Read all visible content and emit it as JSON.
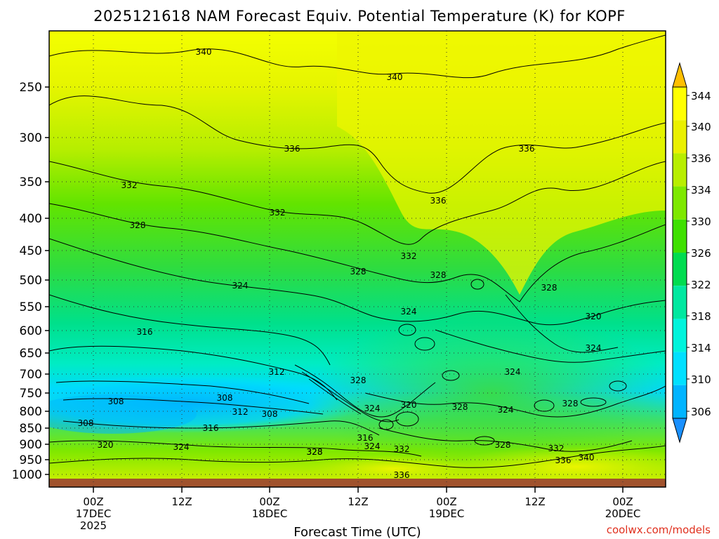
{
  "chart_data": {
    "type": "heatmap",
    "title": "2025121618 NAM Forecast Equiv. Potential Temperature (K) for KOPF",
    "xlabel": "Forecast Time (UTC)",
    "ylabel": "",
    "y_ticks": [
      "250",
      "300",
      "350",
      "400",
      "450",
      "500",
      "550",
      "600",
      "650",
      "700",
      "750",
      "800",
      "850",
      "900",
      "950",
      "1000"
    ],
    "x_ticks": [
      {
        "line1": "00Z",
        "line2": "17DEC",
        "line3": "2025"
      },
      {
        "line1": "12Z",
        "line2": "",
        "line3": ""
      },
      {
        "line1": "00Z",
        "line2": "18DEC",
        "line3": ""
      },
      {
        "line1": "12Z",
        "line2": "",
        "line3": ""
      },
      {
        "line1": "00Z",
        "line2": "19DEC",
        "line3": ""
      },
      {
        "line1": "12Z",
        "line2": "",
        "line3": ""
      },
      {
        "line1": "00Z",
        "line2": "20DEC",
        "line3": ""
      }
    ],
    "colorbar": {
      "ticks": [
        "344",
        "340",
        "336",
        "334",
        "330",
        "326",
        "322",
        "318",
        "314",
        "310",
        "306"
      ],
      "colors": [
        "#ffbf00",
        "#ffff00",
        "#eaf000",
        "#b8ee00",
        "#7ee800",
        "#3fe000",
        "#00dc50",
        "#00e8a0",
        "#00f4dc",
        "#00e0ff",
        "#00b4ff",
        "#1a90ff"
      ]
    },
    "contour_labels": [
      "340",
      "340",
      "336",
      "336",
      "336",
      "332",
      "332",
      "332",
      "328",
      "328",
      "328",
      "328",
      "324",
      "324",
      "324",
      "324",
      "320",
      "320",
      "316",
      "316",
      "312",
      "312",
      "308",
      "308",
      "308",
      "308",
      "328",
      "324",
      "320",
      "328",
      "324",
      "316",
      "324",
      "332",
      "328",
      "328",
      "324",
      "328",
      "332",
      "336",
      "340",
      "328",
      "336"
    ],
    "credit": "coolwx.com/models"
  }
}
